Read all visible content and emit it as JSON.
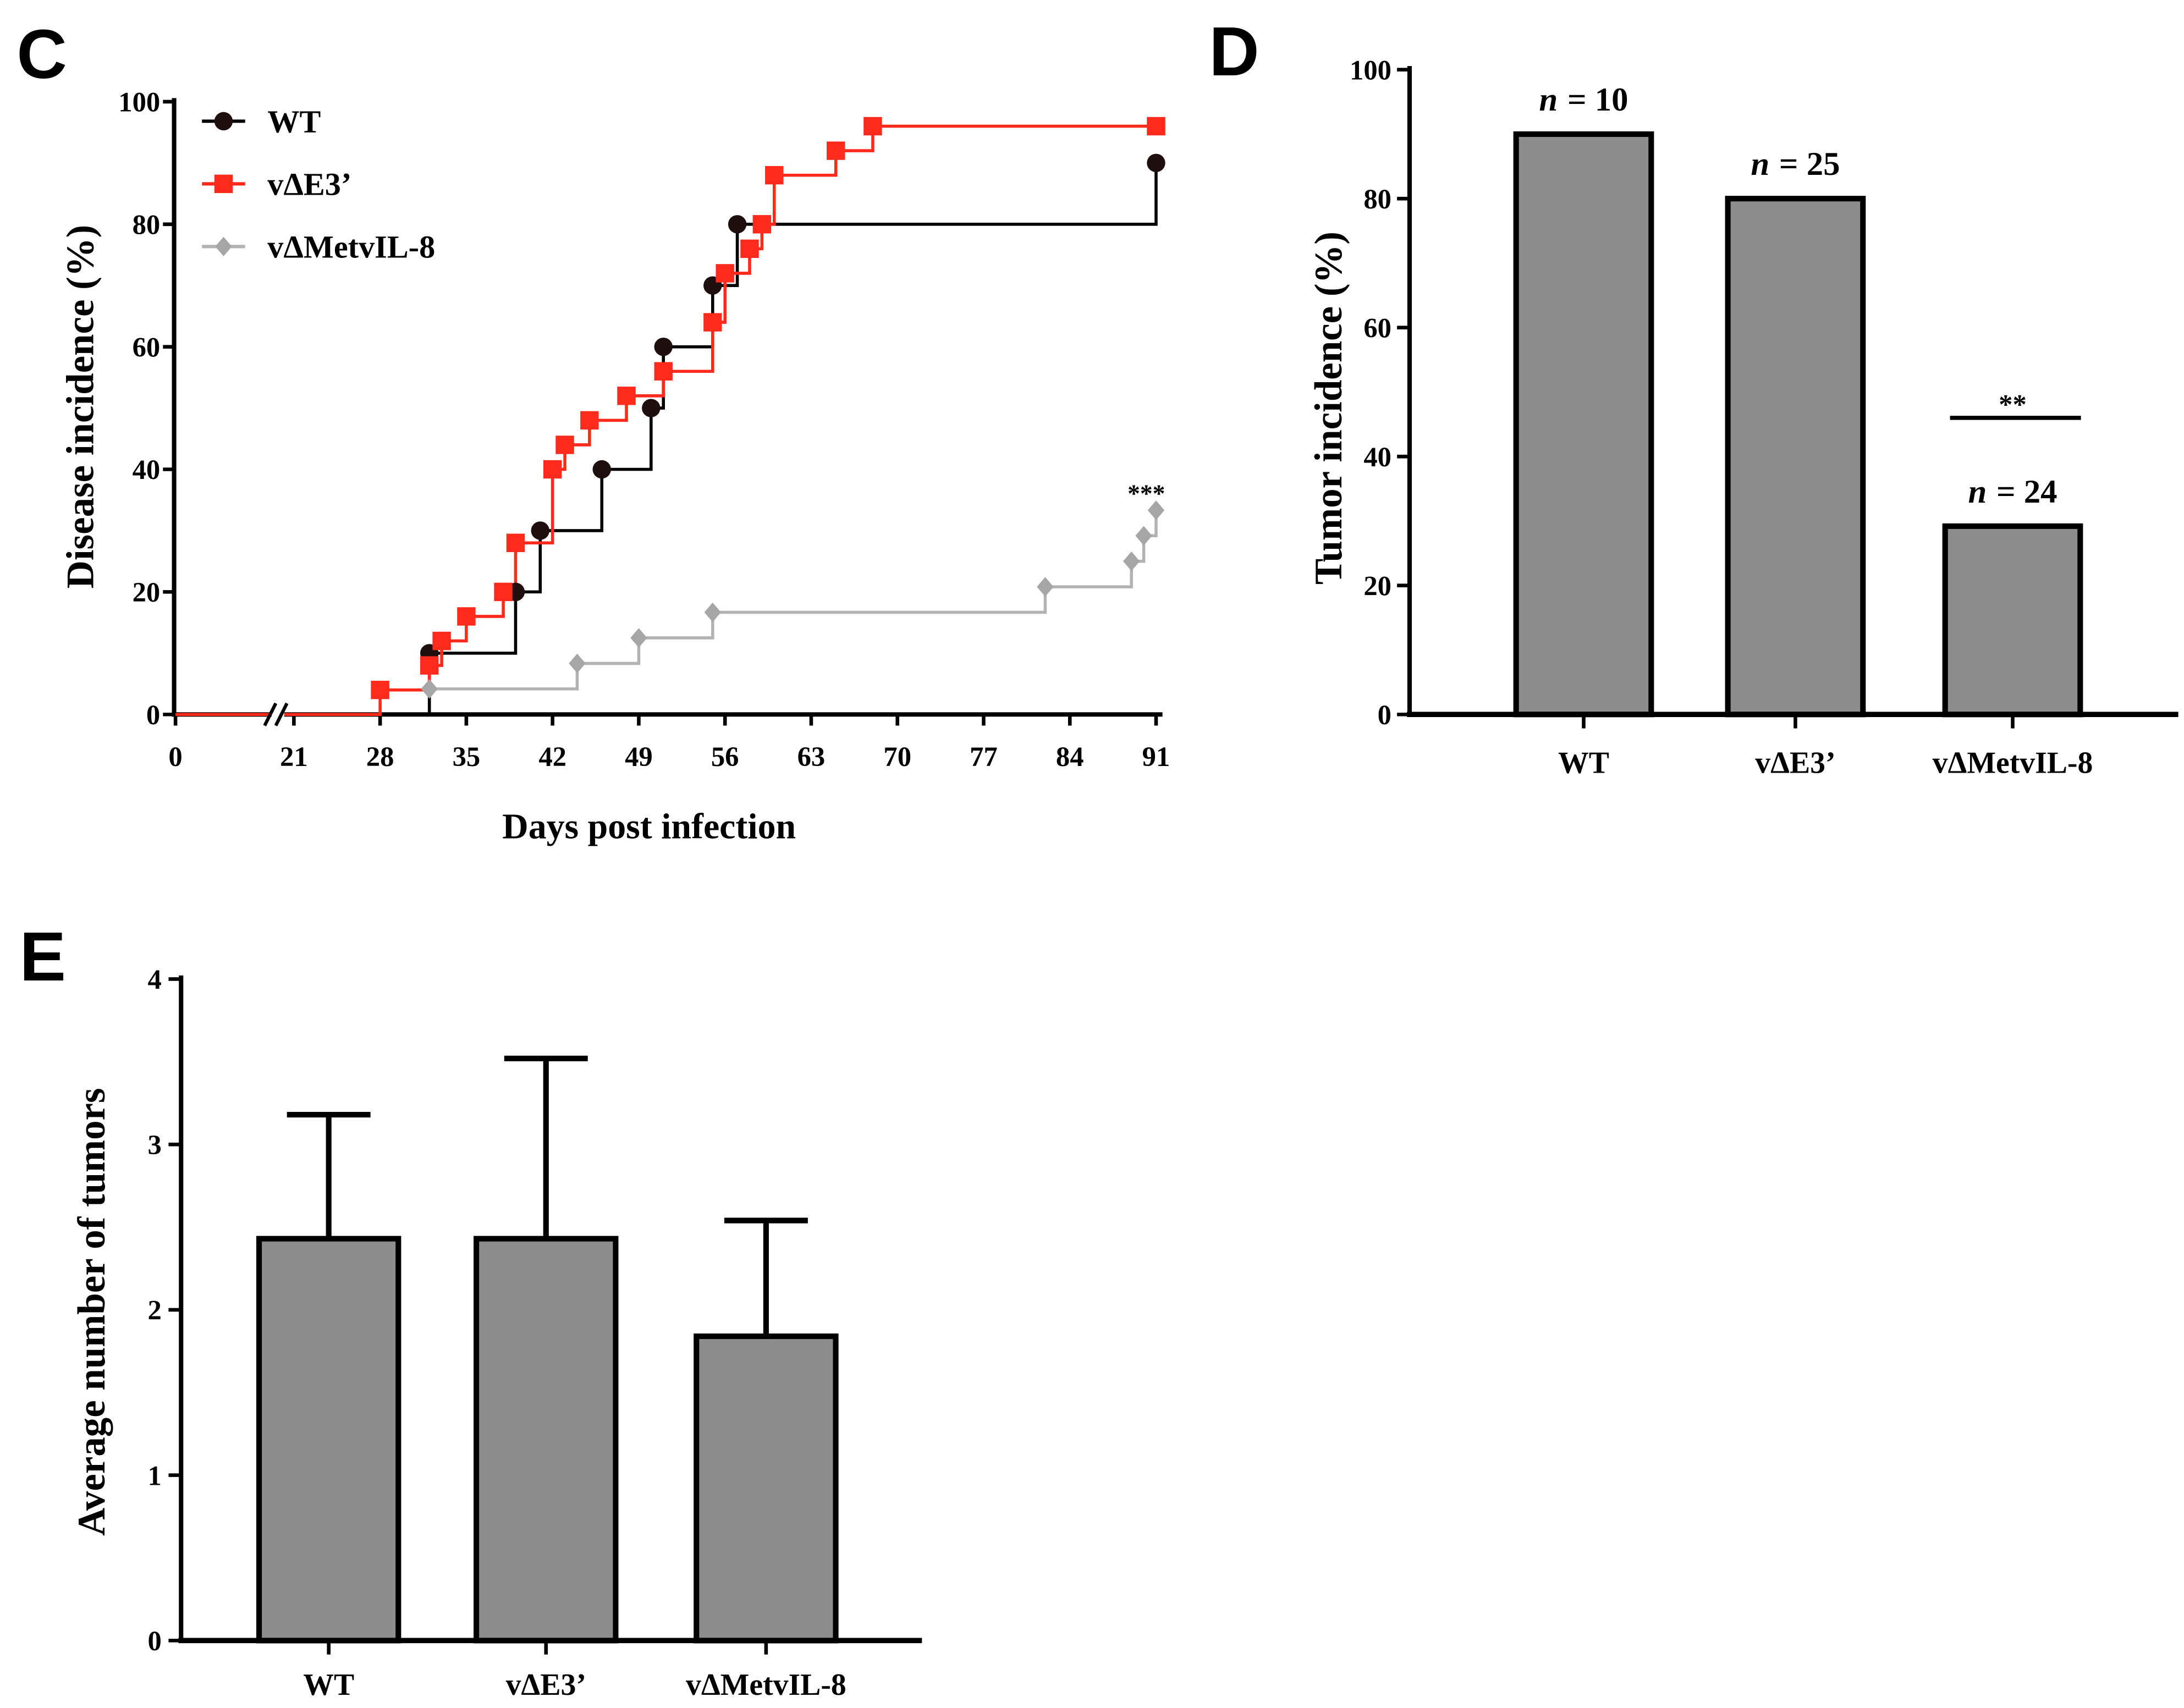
{
  "chart_data": [
    {
      "panel": "C",
      "type": "line",
      "step": true,
      "xlabel": "Days post infection",
      "ylabel": "Disease incidence (%)",
      "xlim": [
        0,
        91
      ],
      "ylim": [
        0,
        100
      ],
      "x_break": [
        0,
        21
      ],
      "xticks": [
        0,
        21,
        28,
        35,
        42,
        49,
        56,
        63,
        70,
        77,
        84,
        91
      ],
      "xtick_labels": [
        "0",
        "21",
        "28",
        "35",
        "42",
        "49",
        "56",
        "63",
        "70",
        "77",
        "84",
        "91"
      ],
      "yticks": [
        0,
        20,
        40,
        60,
        80,
        100
      ],
      "ytick_labels": [
        "0",
        "20",
        "40",
        "60",
        "80",
        "100"
      ],
      "grid": false,
      "legend_position": "top-left",
      "series": [
        {
          "name": "WT",
          "marker": "circle",
          "color": "#000000",
          "marker_color": "#1f0e0e",
          "x": [
            32,
            39,
            41,
            46,
            50,
            51,
            55,
            57,
            91
          ],
          "y": [
            10,
            20,
            30,
            40,
            50,
            60,
            70,
            80,
            90
          ]
        },
        {
          "name": "vΔE3’",
          "marker": "square",
          "color": "#ff2a1c",
          "marker_color": "#ff2a1c",
          "x": [
            28,
            32,
            33,
            35,
            38,
            39,
            42,
            43,
            45,
            48,
            51,
            55,
            56,
            58,
            59,
            60,
            65,
            68,
            91
          ],
          "y": [
            4,
            8,
            12,
            16,
            20,
            28,
            40,
            44,
            48,
            52,
            56,
            64,
            72,
            76,
            80,
            88,
            92,
            96,
            96
          ]
        },
        {
          "name": "vΔMetvIL-8",
          "marker": "diamond",
          "color": "#b3b3b3",
          "marker_color": "#a6a6a6",
          "x": [
            32,
            44,
            49,
            55,
            82,
            89,
            90,
            91
          ],
          "y": [
            4.17,
            8.33,
            12.5,
            16.67,
            20.83,
            25,
            29.17,
            33.33
          ]
        }
      ],
      "annotations": [
        {
          "text": "***",
          "x": 91,
          "y": 33.33
        }
      ]
    },
    {
      "panel": "D",
      "type": "bar",
      "categories": [
        "WT",
        "vΔE3’",
        "vΔMetvIL-8"
      ],
      "values": [
        90,
        80,
        29.2
      ],
      "ylabel": "Tumor incidence (%)",
      "ylim": [
        0,
        100
      ],
      "yticks": [
        0,
        20,
        40,
        60,
        80,
        100
      ],
      "ytick_labels": [
        "0",
        "20",
        "40",
        "60",
        "80",
        "100"
      ],
      "bar_color": "#8d8d8d",
      "sample_sizes": [
        {
          "symbol": "n",
          "value": "= 10"
        },
        {
          "symbol": "n",
          "value": "= 25"
        },
        {
          "symbol": "n",
          "value": "= 24"
        }
      ],
      "significance": {
        "text": "**",
        "category": "vΔMetvIL-8",
        "y": 46
      }
    },
    {
      "panel": "E",
      "type": "bar",
      "categories": [
        "WT",
        "vΔE3’",
        "vΔMetvIL-8"
      ],
      "values": [
        2.43,
        2.43,
        1.84
      ],
      "errors": [
        0.75,
        1.09,
        0.7
      ],
      "ylabel": "Average number of tumors",
      "ylim": [
        0,
        4
      ],
      "yticks": [
        0,
        1,
        2,
        3,
        4
      ],
      "ytick_labels": [
        "0",
        "1",
        "2",
        "3",
        "4"
      ],
      "bar_color": "#8d8d8d"
    }
  ]
}
